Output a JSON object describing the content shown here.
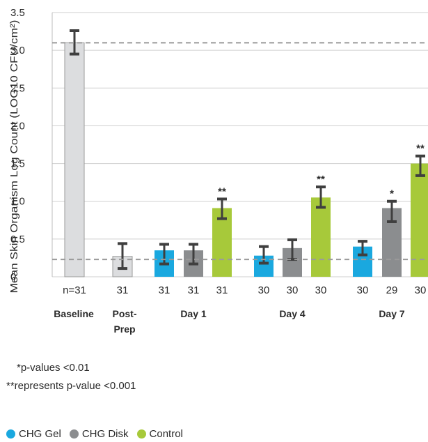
{
  "chart_data": {
    "type": "bar",
    "ylabel": "Mean Skin Organism Log Count (LOG10 CFU/cm²)",
    "ylim": [
      0,
      3.5
    ],
    "yticks": [
      "0",
      "0.5",
      "1.0",
      "1.5",
      "2.0",
      "2.5",
      "3.0",
      "3.5"
    ],
    "grid": true,
    "reference_lines": [
      3.1,
      0.23
    ],
    "groups": [
      {
        "label": "Baseline",
        "bars": [
          {
            "series": "Baseline",
            "value": 3.1,
            "error": [
              2.95,
              3.26
            ],
            "n": "n=31",
            "sig": ""
          }
        ]
      },
      {
        "label": "Post-Prep",
        "bars": [
          {
            "series": "Post-Prep",
            "value": 0.27,
            "error": [
              0.11,
              0.44
            ],
            "n": "31",
            "sig": ""
          }
        ]
      },
      {
        "label": "Day 1",
        "bars": [
          {
            "series": "CHG Gel",
            "value": 0.35,
            "error": [
              0.17,
              0.43
            ],
            "n": "31",
            "sig": ""
          },
          {
            "series": "CHG Disk",
            "value": 0.35,
            "error": [
              0.17,
              0.43
            ],
            "n": "31",
            "sig": ""
          },
          {
            "series": "Control",
            "value": 0.91,
            "error": [
              0.77,
              1.03
            ],
            "n": "31",
            "sig": "**"
          }
        ]
      },
      {
        "label": "Day 4",
        "bars": [
          {
            "series": "CHG Gel",
            "value": 0.28,
            "error": [
              0.18,
              0.4
            ],
            "n": "30",
            "sig": ""
          },
          {
            "series": "CHG Disk",
            "value": 0.38,
            "error": [
              0.23,
              0.49
            ],
            "n": "30",
            "sig": ""
          },
          {
            "series": "Control",
            "value": 1.05,
            "error": [
              0.92,
              1.19
            ],
            "n": "30",
            "sig": "**"
          }
        ]
      },
      {
        "label": "Day 7",
        "bars": [
          {
            "series": "CHG Gel",
            "value": 0.4,
            "error": [
              0.29,
              0.47
            ],
            "n": "30",
            "sig": ""
          },
          {
            "series": "CHG Disk",
            "value": 0.91,
            "error": [
              0.73,
              1.0
            ],
            "n": "29",
            "sig": "*"
          },
          {
            "series": "Control",
            "value": 1.5,
            "error": [
              1.34,
              1.6
            ],
            "n": "30",
            "sig": "**"
          }
        ]
      }
    ],
    "legend": [
      {
        "name": "CHG Gel",
        "color": "#1aa8df"
      },
      {
        "name": "CHG Disk",
        "color": "#8b8d8f"
      },
      {
        "name": "Control",
        "color": "#a7c93a"
      }
    ],
    "colors": {
      "Baseline": "#dcdddf",
      "Post-Prep": "#dcdddf",
      "CHG Gel": "#1aa8df",
      "CHG Disk": "#8b8d8f",
      "Control": "#a7c93a",
      "error_bar": "#3f3f3f",
      "grid": "#cfcfcf",
      "reference_line": "#9a9a9a"
    }
  },
  "footnotes": [
    "*p-values <0.01",
    "**represents p-value <0.001"
  ]
}
